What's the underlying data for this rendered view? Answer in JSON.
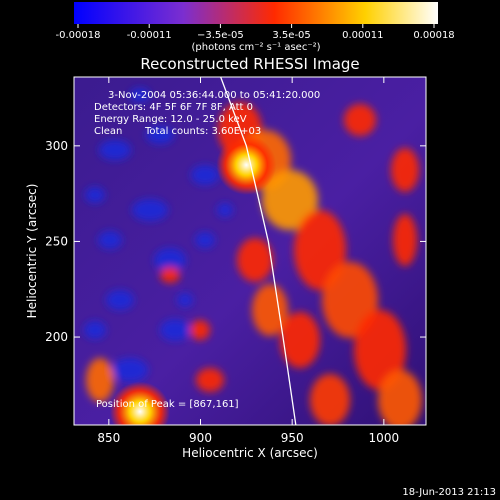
{
  "chart_data": [
    {
      "type": "colorbar",
      "ticks": [
        "-0.00018",
        "-0.00011",
        "−3.5e-05",
        "3.5e-05",
        "0.00011",
        "0.00018"
      ],
      "label": "(photons cm⁻² s⁻¹ asec⁻²)",
      "range": [
        -0.00018,
        0.00018
      ],
      "colors": [
        "#0000ff",
        "#7b2ed0",
        "#ff2a00",
        "#ffd000",
        "#ffffff"
      ]
    },
    {
      "type": "heatmap",
      "title": "Reconstructed RHESSI Image",
      "xlabel": "Heliocentric X (arcsec)",
      "ylabel": "Heliocentric Y (arcsec)",
      "xlim": [
        831,
        1023
      ],
      "ylim": [
        154,
        336
      ],
      "xticks": [
        850,
        900,
        950,
        1000
      ],
      "yticks": [
        200,
        250,
        300
      ],
      "annotations": [
        "3-Nov-2004 05:36:44.000 to 05:41:20.000",
        "Detectors: 4F 5F 6F 7F 8F, Att 0",
        "Energy Range: 12.0 - 25.0 keV",
        "Clean",
        "Total counts: 3.60E+03"
      ],
      "peak_label": "Position of Peak = [867,161]",
      "peak": [
        867,
        161
      ],
      "limb_curve": [
        [
          911,
          336
        ],
        [
          925,
          300
        ],
        [
          937,
          250
        ],
        [
          945,
          200
        ],
        [
          952,
          154
        ]
      ],
      "bright_sources": [
        {
          "x": 925,
          "y": 290,
          "intensity": 1.0
        },
        {
          "x": 867,
          "y": 161,
          "intensity": 1.0
        }
      ]
    }
  ],
  "footer": {
    "timestamp": "18-Jun-2013 21:13"
  }
}
